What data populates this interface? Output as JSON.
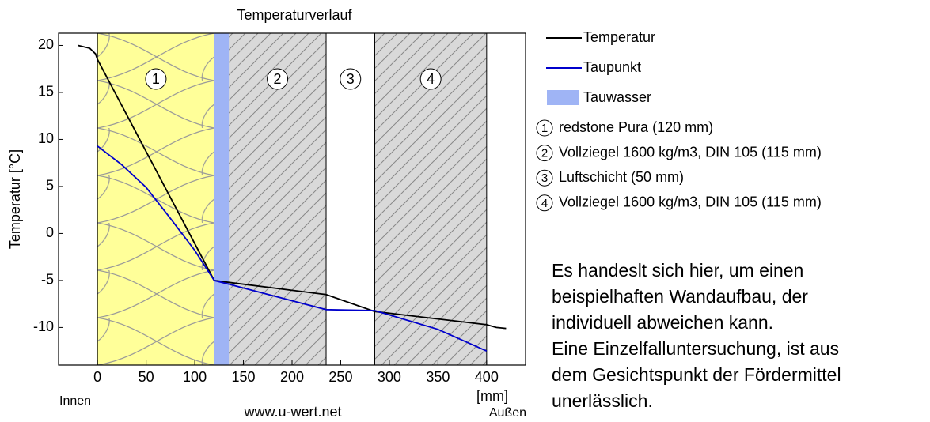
{
  "chart_data": {
    "type": "line",
    "title": "Temperaturverlauf",
    "ylabel": "Temperatur [°C]",
    "xlabel": "[mm]",
    "inside_label": "Innen",
    "outside_label": "Außen",
    "source": "www.u-wert.net",
    "xlim": [
      -40,
      440
    ],
    "ylim": [
      -14,
      21.3
    ],
    "xticks": [
      0,
      50,
      100,
      150,
      200,
      250,
      300,
      350,
      400
    ],
    "yticks": [
      -10,
      -5,
      0,
      5,
      10,
      15,
      20
    ],
    "series": [
      {
        "name": "Temperatur",
        "color": "#000000",
        "x": [
          -20,
          -8,
          -2,
          0,
          120,
          135,
          235,
          285,
          400,
          410,
          420
        ],
        "values": [
          20,
          19.7,
          19.1,
          18.5,
          -5,
          -5.2,
          -6.5,
          -8.3,
          -9.7,
          -10,
          -10.1
        ]
      },
      {
        "name": "Taupunkt",
        "color": "#0000cc",
        "x": [
          0,
          25,
          50,
          75,
          100,
          120,
          135,
          235,
          285,
          350,
          400
        ],
        "values": [
          9.3,
          7.3,
          4.9,
          1.6,
          -1.8,
          -5,
          -5.4,
          -8.1,
          -8.2,
          -10.2,
          -12.5
        ]
      }
    ],
    "condensation": {
      "name": "Tauwasser",
      "start": 120,
      "end": 135,
      "color": "#9fb4f5"
    },
    "layers": [
      {
        "number": "1",
        "name": "redstone Pura (120 mm)",
        "start": 0,
        "end": 120,
        "pattern": "insulation"
      },
      {
        "number": "2",
        "name": "Vollziegel 1600 kg/m3, DIN 105 (115 mm)",
        "start": 120,
        "end": 235,
        "pattern": "hatch"
      },
      {
        "number": "3",
        "name": "Luftschicht (50 mm)",
        "start": 235,
        "end": 285,
        "pattern": "none"
      },
      {
        "number": "4",
        "name": "Vollziegel 1600 kg/m3, DIN 105 (115 mm)",
        "start": 285,
        "end": 400,
        "pattern": "hatch"
      }
    ],
    "note": [
      "Es handeslt sich hier, um einen",
      "beispielhaften Wandaufbau, der",
      "individuell abweichen kann.",
      "Eine Einzelfalluntersuchung, ist aus",
      "dem Gesichtspunkt der Fördermittel",
      "unerlässlich."
    ],
    "note_color": "#ff0000"
  }
}
